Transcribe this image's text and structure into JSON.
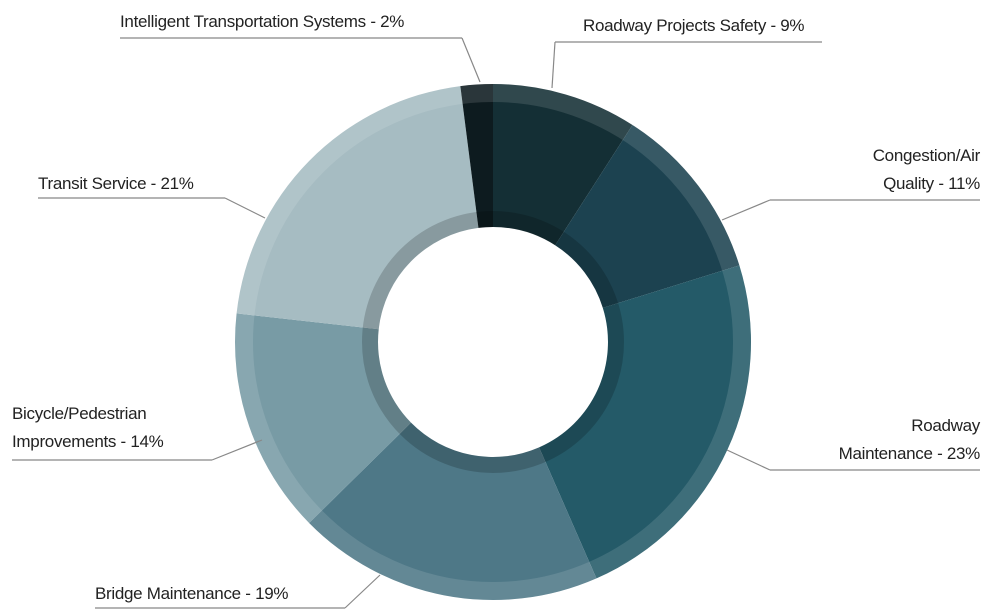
{
  "chart_data": {
    "type": "donut",
    "categories": [
      "Roadway Projects Safety",
      "Congestion/Air Quality",
      "Roadway Maintenance",
      "Bridge Maintenance",
      "Bicycle/Pedestrian Improvements",
      "Transit Service",
      "Intelligent Transportation Systems"
    ],
    "values": [
      9,
      11,
      23,
      19,
      14,
      21,
      2
    ],
    "value_labels": [
      "9%",
      "11%",
      "23%",
      "19%",
      "14%",
      "21%",
      "2%"
    ],
    "separator": "-",
    "colors": [
      "#142f35",
      "#1c4250",
      "#245a68",
      "#4e7887",
      "#789ba5",
      "#a6bcc2",
      "#0d1b1f"
    ]
  }
}
